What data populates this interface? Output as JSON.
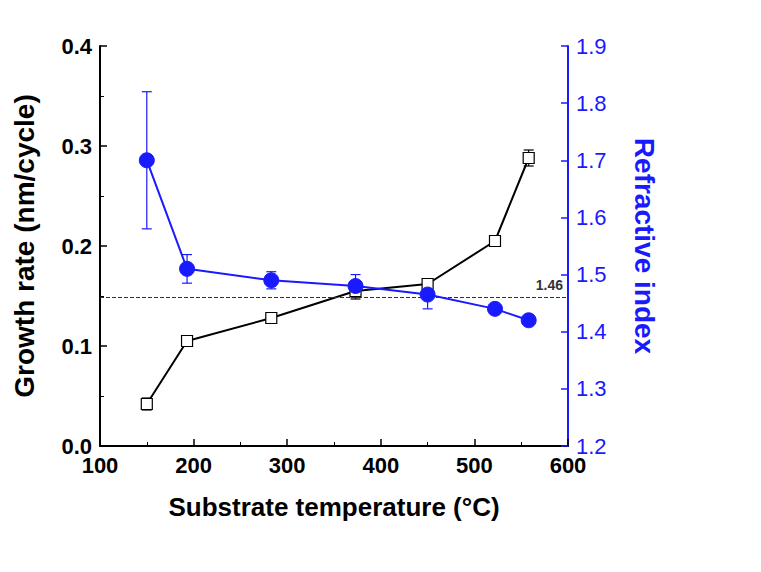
{
  "chart_data": {
    "type": "line",
    "x_label": "Substrate temperature (°C)",
    "y_label": "Growth rate (nm/cycle)",
    "y2_label": "Refractive index",
    "xlim": [
      100,
      600
    ],
    "xticks": [
      100,
      200,
      300,
      400,
      500,
      600
    ],
    "ylim": [
      0,
      0.4
    ],
    "yticks": [
      {
        "value": 0,
        "label": "0.0"
      },
      0.1,
      0.2,
      0.3,
      0.4
    ],
    "y2lim": [
      1.2,
      1.9
    ],
    "y2ticks": [
      1.2,
      1.3,
      1.4,
      1.5,
      1.6,
      1.7,
      1.8,
      1.9
    ],
    "grid": false,
    "series": [
      {
        "x": [
          150,
          193,
          283,
          373,
          450,
          522,
          558
        ],
        "values": [
          0.042,
          0.105,
          0.128,
          0.155,
          0.162,
          0.205,
          0.288
        ],
        "errors": [
          0.006,
          0.005,
          0.005,
          0.008,
          0.005,
          0.005,
          0.008
        ],
        "color": "#000000",
        "marker": "square_open",
        "line_style": "solid"
      },
      {
        "x": [
          150,
          193,
          283,
          373,
          450,
          522,
          558
        ],
        "values": [
          1.7,
          1.51,
          1.49,
          1.48,
          1.465,
          1.44,
          1.42
        ],
        "errors": [
          0.12,
          0.025,
          0.015,
          0.02,
          0.025,
          0.008,
          0.008
        ],
        "color": "#1a1aff",
        "marker": "circle",
        "line_style": "solid",
        "axis": "y2"
      }
    ],
    "hline": {
      "value": 1.46,
      "axis": "y2",
      "line_style": "dashed",
      "color": "#333333"
    }
  }
}
